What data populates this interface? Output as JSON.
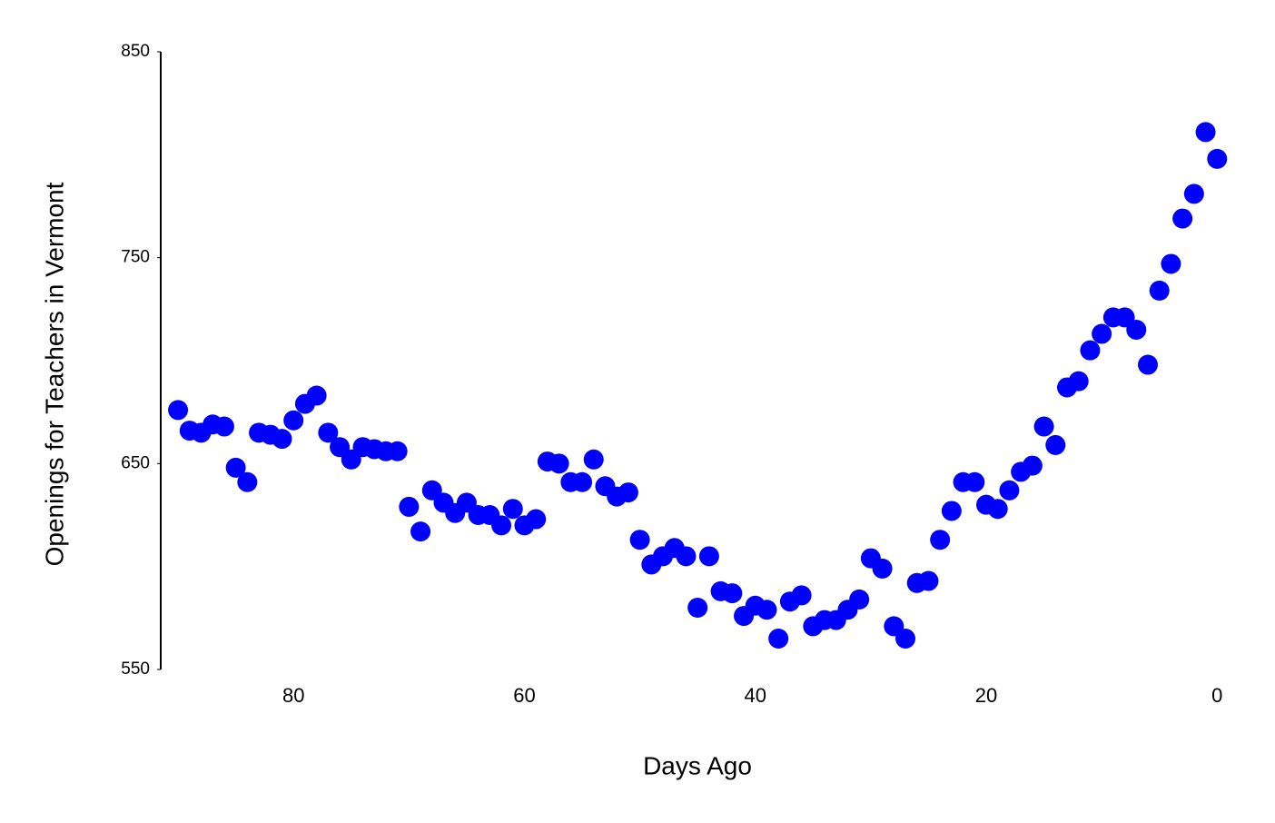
{
  "chart_data": {
    "type": "scatter",
    "x_label": "Days Ago",
    "y_label": "Openings for Teachers in Vermont",
    "color": "#0000ff",
    "x": [
      90,
      89,
      88,
      87,
      86,
      85,
      84,
      83,
      82,
      81,
      80,
      79,
      78,
      77,
      76,
      75,
      74,
      73,
      72,
      71,
      70,
      69,
      68,
      67,
      66,
      65,
      64,
      63,
      62,
      61,
      60,
      59,
      58,
      57,
      56,
      55,
      54,
      53,
      52,
      51,
      50,
      49,
      48,
      47,
      46,
      45,
      44,
      43,
      42,
      41,
      40,
      39,
      38,
      37,
      36,
      35,
      34,
      33,
      32,
      31,
      30,
      29,
      28,
      27,
      26,
      25,
      24,
      23,
      22,
      21,
      20,
      19,
      18,
      17,
      16,
      15,
      14,
      13,
      12,
      11,
      10,
      9,
      8,
      7,
      6,
      5,
      4,
      3,
      2,
      1,
      0
    ],
    "values": [
      676,
      666,
      665,
      669,
      668,
      648,
      641,
      665,
      664,
      662,
      671,
      679,
      683,
      665,
      658,
      652,
      658,
      657,
      656,
      656,
      629,
      617,
      637,
      631,
      626,
      631,
      625,
      625,
      620,
      628,
      620,
      623,
      651,
      650,
      641,
      641,
      652,
      639,
      634,
      636,
      613,
      601,
      605,
      609,
      605,
      580,
      605,
      588,
      587,
      576,
      581,
      579,
      565,
      583,
      586,
      571,
      574,
      574,
      579,
      584,
      604,
      599,
      571,
      565,
      592,
      593,
      613,
      627,
      641,
      641,
      630,
      628,
      637,
      646,
      649,
      668,
      659,
      687,
      690,
      705,
      713,
      721,
      721,
      715,
      698,
      734,
      747,
      769,
      781,
      811,
      798
    ],
    "xlim": [
      91.5,
      -1
    ],
    "xticks": [
      80,
      60,
      40,
      20,
      0
    ],
    "ylim": [
      550,
      850
    ],
    "yticks": [
      550,
      650,
      750,
      850
    ]
  }
}
